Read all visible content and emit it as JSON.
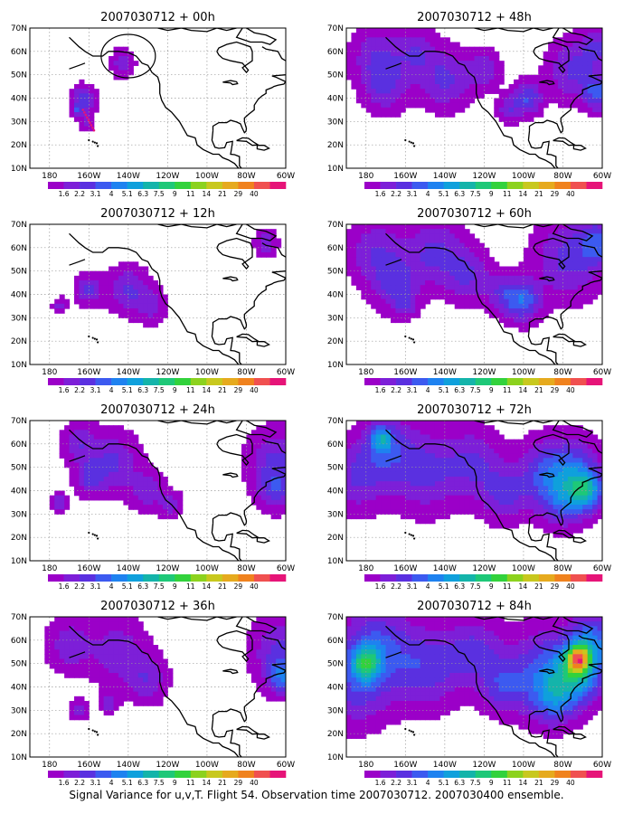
{
  "caption": "Signal Variance for u,v,T. Flight 54. Observation time 2007030712. 2007030400 ensemble.",
  "chart_data": {
    "type": "heatmap",
    "lat_ticks": [
      "10N",
      "20N",
      "30N",
      "40N",
      "50N",
      "60N",
      "70N"
    ],
    "lon_ticks": [
      "180",
      "160W",
      "140W",
      "120W",
      "100W",
      "80W",
      "60W"
    ],
    "lat_range": [
      10,
      70
    ],
    "lon_range": [
      -190,
      -60
    ],
    "grid": true,
    "colorbar": {
      "labels": [
        "1.6",
        "2.2",
        "3.1",
        "4",
        "5.1",
        "6.3",
        "7.5",
        "9",
        "11",
        "14",
        "21",
        "29",
        "40"
      ],
      "colors": [
        "#9b00c8",
        "#7d1fd8",
        "#5a30e0",
        "#3c5af0",
        "#1e82f0",
        "#0fa0dc",
        "#14b4aa",
        "#1ec878",
        "#32d23c",
        "#8cd21e",
        "#c8c81e",
        "#e6aa1e",
        "#f0821e",
        "#f05050",
        "#e61478"
      ]
    },
    "panels": [
      {
        "title": "2007030712 + 00h",
        "lead_hours": 0,
        "level": 0.6,
        "circle_lon": -140,
        "circle_lat": 58,
        "blobs": [
          {
            "lon": -163,
            "lat": 39,
            "r": 4.5,
            "v": 3.0
          },
          {
            "lon": -143,
            "lat": 55,
            "r": 4.5,
            "v": 2.0
          },
          {
            "lon": -166,
            "lat": 35,
            "r": 1.5,
            "v": 2.0
          },
          {
            "lon": -161,
            "lat": 29,
            "r": 3,
            "v": 1.4
          }
        ]
      },
      {
        "title": "2007030712 + 12h",
        "lead_hours": 12,
        "level": 0.5,
        "blobs": [
          {
            "lon": -160,
            "lat": 42,
            "r": 4.5,
            "v": 2.5
          },
          {
            "lon": -140,
            "lat": 42,
            "r": 7,
            "v": 2.5
          },
          {
            "lon": -175,
            "lat": 35,
            "r": 2.5,
            "v": 2.0
          },
          {
            "lon": -128,
            "lat": 35,
            "r": 5,
            "v": 1.8
          },
          {
            "lon": -70,
            "lat": 62,
            "r": 4,
            "v": 2.0
          }
        ]
      },
      {
        "title": "2007030712 + 24h",
        "lead_hours": 24,
        "level": 0.5,
        "blobs": [
          {
            "lon": -165,
            "lat": 60,
            "r": 6,
            "v": 2.0
          },
          {
            "lon": -148,
            "lat": 52,
            "r": 9,
            "v": 2.5
          },
          {
            "lon": -160,
            "lat": 45,
            "r": 5,
            "v": 2.0
          },
          {
            "lon": -130,
            "lat": 40,
            "r": 6,
            "v": 2.0
          },
          {
            "lon": -118,
            "lat": 34,
            "r": 4,
            "v": 1.8
          },
          {
            "lon": -175,
            "lat": 35,
            "r": 3,
            "v": 2.0
          },
          {
            "lon": -65,
            "lat": 52,
            "r": 10,
            "v": 2.5
          },
          {
            "lon": -65,
            "lat": 40,
            "r": 6,
            "v": 2.0
          }
        ]
      },
      {
        "title": "2007030712 + 36h",
        "lead_hours": 36,
        "level": 0.5,
        "blobs": [
          {
            "lon": -170,
            "lat": 58,
            "r": 8,
            "v": 2.0
          },
          {
            "lon": -145,
            "lat": 55,
            "r": 10,
            "v": 2.0
          },
          {
            "lon": -130,
            "lat": 43,
            "r": 7,
            "v": 2.0
          },
          {
            "lon": -165,
            "lat": 30,
            "r": 3,
            "v": 2.0
          },
          {
            "lon": -150,
            "lat": 33,
            "r": 3,
            "v": 2.0
          },
          {
            "lon": -63,
            "lat": 55,
            "r": 10,
            "v": 2.5
          },
          {
            "lon": -62,
            "lat": 44,
            "r": 5,
            "v": 3.0
          }
        ]
      },
      {
        "title": "2007030712 + 48h",
        "lead_hours": 48,
        "level": 0.5,
        "blobs": [
          {
            "lon": -175,
            "lat": 58,
            "r": 9,
            "v": 2.0
          },
          {
            "lon": -170,
            "lat": 45,
            "r": 8,
            "v": 2.2
          },
          {
            "lon": -155,
            "lat": 60,
            "r": 7,
            "v": 2.0
          },
          {
            "lon": -140,
            "lat": 48,
            "r": 9,
            "v": 2.5
          },
          {
            "lon": -120,
            "lat": 52,
            "r": 6,
            "v": 2.0
          },
          {
            "lon": -98,
            "lat": 40,
            "r": 5,
            "v": 3.2
          },
          {
            "lon": -108,
            "lat": 35,
            "r": 4,
            "v": 2.0
          },
          {
            "lon": -75,
            "lat": 52,
            "r": 9,
            "v": 2.5
          },
          {
            "lon": -62,
            "lat": 42,
            "r": 5,
            "v": 3.5
          },
          {
            "lon": -62,
            "lat": 62,
            "r": 6,
            "v": 2.2
          }
        ]
      },
      {
        "title": "2007030712 + 60h",
        "lead_hours": 60,
        "level": 0.5,
        "blobs": [
          {
            "lon": -175,
            "lat": 58,
            "r": 10,
            "v": 2.2
          },
          {
            "lon": -165,
            "lat": 44,
            "r": 8,
            "v": 2.2
          },
          {
            "lon": -145,
            "lat": 58,
            "r": 10,
            "v": 2.5
          },
          {
            "lon": -128,
            "lat": 48,
            "r": 8,
            "v": 2.2
          },
          {
            "lon": -100,
            "lat": 37,
            "r": 6,
            "v": 3.5
          },
          {
            "lon": -110,
            "lat": 40,
            "r": 6,
            "v": 2.2
          },
          {
            "lon": -78,
            "lat": 55,
            "r": 12,
            "v": 2.5
          },
          {
            "lon": -62,
            "lat": 62,
            "r": 7,
            "v": 3.0
          },
          {
            "lon": -160,
            "lat": 36,
            "r": 4,
            "v": 1.8
          }
        ]
      },
      {
        "title": "2007030712 + 72h",
        "lead_hours": 72,
        "level": 0.5,
        "blobs": [
          {
            "lon": -185,
            "lat": 45,
            "r": 10,
            "v": 2.2
          },
          {
            "lon": -170,
            "lat": 58,
            "r": 10,
            "v": 2.5
          },
          {
            "lon": -150,
            "lat": 48,
            "r": 12,
            "v": 2.5
          },
          {
            "lon": -125,
            "lat": 52,
            "r": 10,
            "v": 2.3
          },
          {
            "lon": -110,
            "lat": 38,
            "r": 8,
            "v": 2.3
          },
          {
            "lon": -90,
            "lat": 47,
            "r": 10,
            "v": 2.5
          },
          {
            "lon": -75,
            "lat": 48,
            "r": 10,
            "v": 3.2
          },
          {
            "lon": -68,
            "lat": 40,
            "r": 6,
            "v": 4.5
          },
          {
            "lon": -172,
            "lat": 62,
            "r": 4,
            "v": 3.5
          },
          {
            "lon": -80,
            "lat": 35,
            "r": 8,
            "v": 2.3
          }
        ]
      },
      {
        "title": "2007030712 + 84h",
        "lead_hours": 84,
        "level": 0.5,
        "blobs": [
          {
            "lon": -185,
            "lat": 40,
            "r": 12,
            "v": 2.5
          },
          {
            "lon": -175,
            "lat": 58,
            "r": 12,
            "v": 3.0
          },
          {
            "lon": -180,
            "lat": 50,
            "r": 5,
            "v": 4.5
          },
          {
            "lon": -150,
            "lat": 48,
            "r": 12,
            "v": 2.8
          },
          {
            "lon": -125,
            "lat": 55,
            "r": 10,
            "v": 2.5
          },
          {
            "lon": -110,
            "lat": 40,
            "r": 8,
            "v": 2.6
          },
          {
            "lon": -90,
            "lat": 48,
            "r": 12,
            "v": 3.0
          },
          {
            "lon": -72,
            "lat": 46,
            "r": 9,
            "v": 5.0
          },
          {
            "lon": -72,
            "lat": 52,
            "r": 4,
            "v": 7.0
          },
          {
            "lon": -85,
            "lat": 35,
            "r": 8,
            "v": 3.2
          },
          {
            "lon": -65,
            "lat": 60,
            "r": 8,
            "v": 3.5
          }
        ]
      }
    ]
  }
}
